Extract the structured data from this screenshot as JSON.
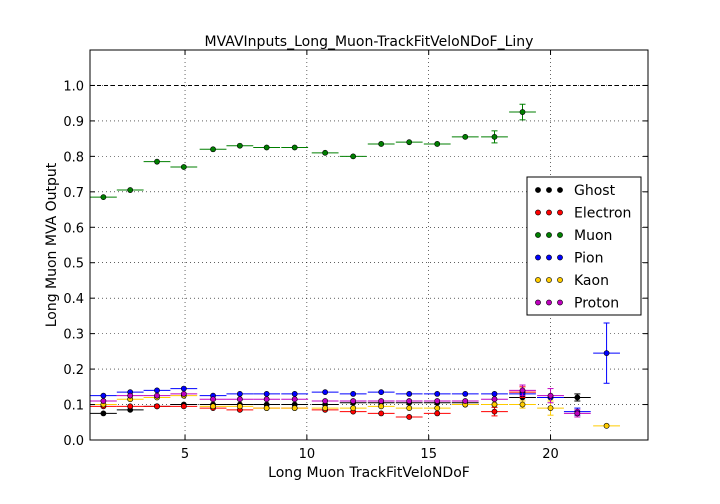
{
  "chart_data": {
    "type": "scatter",
    "title": "MVAVInputs_Long_Muon-TrackFitVeloNDoF_Liny",
    "xlabel": "Long Muon TrackFitVeloNDoF",
    "ylabel": "Long Muon MVA Output",
    "xlim": [
      1.1,
      24.0
    ],
    "ylim": [
      0.0,
      1.1
    ],
    "xticks": [
      5,
      10,
      15,
      20
    ],
    "yticks": [
      0.0,
      0.1,
      0.2,
      0.3,
      0.4,
      0.5,
      0.6,
      0.7,
      0.8,
      0.9,
      1.0
    ],
    "ytick_labels": [
      "0.0",
      "0.1",
      "0.2",
      "0.3",
      "0.4",
      "0.5",
      "0.6",
      "0.7",
      "0.8",
      "0.9",
      "1.0"
    ],
    "grid": true,
    "reference_line": 1.0,
    "legend_position": "right",
    "series": [
      {
        "name": "Ghost",
        "color": "#000000",
        "points": [
          [
            1.65,
            0.075,
            0.55,
            0.003
          ],
          [
            2.75,
            0.085,
            0.55,
            0.003
          ],
          [
            3.85,
            0.095,
            0.55,
            0.003
          ],
          [
            4.95,
            0.1,
            0.55,
            0.003
          ],
          [
            6.15,
            0.1,
            0.55,
            0.003
          ],
          [
            7.25,
            0.1,
            0.55,
            0.003
          ],
          [
            8.35,
            0.1,
            0.55,
            0.003
          ],
          [
            9.5,
            0.1,
            0.55,
            0.003
          ],
          [
            10.75,
            0.1,
            0.55,
            0.003
          ],
          [
            11.9,
            0.105,
            0.55,
            0.003
          ],
          [
            13.05,
            0.105,
            0.55,
            0.003
          ],
          [
            14.2,
            0.105,
            0.55,
            0.003
          ],
          [
            15.35,
            0.105,
            0.55,
            0.003
          ],
          [
            16.5,
            0.105,
            0.55,
            0.003
          ],
          [
            17.7,
            0.1,
            0.55,
            0.005
          ],
          [
            18.85,
            0.12,
            0.55,
            0.006
          ],
          [
            20.0,
            0.12,
            0.55,
            0.008
          ],
          [
            21.1,
            0.12,
            0.55,
            0.01
          ]
        ]
      },
      {
        "name": "Electron",
        "color": "#ff0000",
        "points": [
          [
            1.65,
            0.095,
            0.55,
            0.003
          ],
          [
            2.75,
            0.095,
            0.55,
            0.003
          ],
          [
            3.85,
            0.095,
            0.55,
            0.003
          ],
          [
            4.95,
            0.095,
            0.55,
            0.003
          ],
          [
            6.15,
            0.09,
            0.55,
            0.003
          ],
          [
            7.25,
            0.085,
            0.55,
            0.003
          ],
          [
            8.35,
            0.09,
            0.55,
            0.003
          ],
          [
            9.5,
            0.09,
            0.55,
            0.003
          ],
          [
            10.75,
            0.085,
            0.55,
            0.003
          ],
          [
            11.9,
            0.08,
            0.55,
            0.003
          ],
          [
            13.05,
            0.075,
            0.55,
            0.004
          ],
          [
            14.2,
            0.065,
            0.55,
            0.004
          ],
          [
            15.35,
            0.075,
            0.55,
            0.005
          ],
          [
            16.5,
            0.1,
            0.55,
            0.006
          ],
          [
            17.7,
            0.08,
            0.55,
            0.012
          ],
          [
            18.85,
            0.135,
            0.55,
            0.015
          ]
        ]
      },
      {
        "name": "Muon",
        "color": "#007f00",
        "points": [
          [
            1.65,
            0.685,
            0.55,
            0.004
          ],
          [
            2.75,
            0.705,
            0.55,
            0.004
          ],
          [
            3.85,
            0.785,
            0.55,
            0.004
          ],
          [
            4.95,
            0.77,
            0.55,
            0.004
          ],
          [
            6.15,
            0.82,
            0.55,
            0.004
          ],
          [
            7.25,
            0.83,
            0.55,
            0.004
          ],
          [
            8.35,
            0.825,
            0.55,
            0.004
          ],
          [
            9.5,
            0.825,
            0.55,
            0.004
          ],
          [
            10.75,
            0.81,
            0.55,
            0.004
          ],
          [
            11.9,
            0.8,
            0.55,
            0.004
          ],
          [
            13.05,
            0.835,
            0.55,
            0.004
          ],
          [
            14.2,
            0.84,
            0.55,
            0.004
          ],
          [
            15.35,
            0.835,
            0.55,
            0.004
          ],
          [
            16.5,
            0.855,
            0.55,
            0.005
          ],
          [
            17.7,
            0.855,
            0.55,
            0.017
          ],
          [
            18.85,
            0.925,
            0.55,
            0.022
          ]
        ]
      },
      {
        "name": "Pion",
        "color": "#0000ff",
        "points": [
          [
            1.65,
            0.125,
            0.55,
            0.003
          ],
          [
            2.75,
            0.135,
            0.55,
            0.003
          ],
          [
            3.85,
            0.14,
            0.55,
            0.003
          ],
          [
            4.95,
            0.145,
            0.55,
            0.003
          ],
          [
            6.15,
            0.125,
            0.55,
            0.003
          ],
          [
            7.25,
            0.13,
            0.55,
            0.003
          ],
          [
            8.35,
            0.13,
            0.55,
            0.003
          ],
          [
            9.5,
            0.13,
            0.55,
            0.003
          ],
          [
            10.75,
            0.135,
            0.55,
            0.003
          ],
          [
            11.9,
            0.13,
            0.55,
            0.003
          ],
          [
            13.05,
            0.135,
            0.55,
            0.003
          ],
          [
            14.2,
            0.13,
            0.55,
            0.003
          ],
          [
            15.35,
            0.13,
            0.55,
            0.003
          ],
          [
            16.5,
            0.13,
            0.55,
            0.004
          ],
          [
            17.7,
            0.13,
            0.55,
            0.005
          ],
          [
            18.85,
            0.13,
            0.55,
            0.006
          ],
          [
            20.0,
            0.12,
            0.55,
            0.008
          ],
          [
            21.1,
            0.08,
            0.55,
            0.01
          ],
          [
            22.3,
            0.245,
            0.55,
            0.085
          ]
        ]
      },
      {
        "name": "Kaon",
        "color": "#ffcc00",
        "points": [
          [
            1.65,
            0.1,
            0.55,
            0.003
          ],
          [
            2.75,
            0.115,
            0.55,
            0.003
          ],
          [
            3.85,
            0.12,
            0.55,
            0.003
          ],
          [
            4.95,
            0.125,
            0.55,
            0.003
          ],
          [
            6.15,
            0.095,
            0.55,
            0.003
          ],
          [
            7.25,
            0.095,
            0.55,
            0.003
          ],
          [
            8.35,
            0.09,
            0.55,
            0.003
          ],
          [
            9.5,
            0.09,
            0.55,
            0.003
          ],
          [
            10.75,
            0.09,
            0.55,
            0.003
          ],
          [
            11.9,
            0.09,
            0.55,
            0.003
          ],
          [
            13.05,
            0.095,
            0.55,
            0.004
          ],
          [
            14.2,
            0.09,
            0.55,
            0.004
          ],
          [
            15.35,
            0.09,
            0.55,
            0.005
          ],
          [
            16.5,
            0.1,
            0.55,
            0.006
          ],
          [
            17.7,
            0.1,
            0.55,
            0.008
          ],
          [
            18.85,
            0.1,
            0.55,
            0.01
          ],
          [
            20.0,
            0.09,
            0.55,
            0.02
          ],
          [
            22.3,
            0.04,
            0.55,
            0.004
          ]
        ]
      },
      {
        "name": "Proton",
        "color": "#bf00bf",
        "points": [
          [
            1.65,
            0.11,
            0.55,
            0.003
          ],
          [
            2.75,
            0.125,
            0.55,
            0.003
          ],
          [
            3.85,
            0.125,
            0.55,
            0.003
          ],
          [
            4.95,
            0.13,
            0.55,
            0.003
          ],
          [
            6.15,
            0.115,
            0.55,
            0.003
          ],
          [
            7.25,
            0.115,
            0.55,
            0.003
          ],
          [
            8.35,
            0.115,
            0.55,
            0.003
          ],
          [
            9.5,
            0.115,
            0.55,
            0.003
          ],
          [
            10.75,
            0.11,
            0.55,
            0.003
          ],
          [
            11.9,
            0.11,
            0.55,
            0.003
          ],
          [
            13.05,
            0.11,
            0.55,
            0.004
          ],
          [
            14.2,
            0.11,
            0.55,
            0.004
          ],
          [
            15.35,
            0.11,
            0.55,
            0.005
          ],
          [
            16.5,
            0.11,
            0.55,
            0.006
          ],
          [
            17.7,
            0.115,
            0.55,
            0.008
          ],
          [
            18.85,
            0.14,
            0.55,
            0.015
          ],
          [
            20.0,
            0.125,
            0.55,
            0.02
          ],
          [
            21.1,
            0.075,
            0.55,
            0.01
          ]
        ]
      }
    ]
  }
}
